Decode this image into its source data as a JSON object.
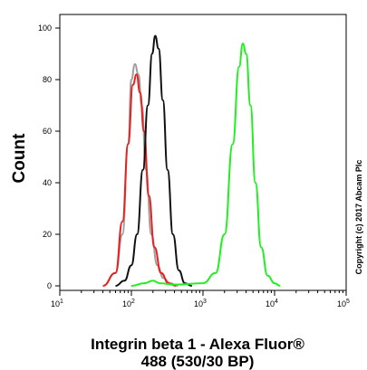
{
  "chart_data": {
    "type": "line",
    "title": "",
    "xlabel_lines": [
      "Integrin beta 1 - Alexa Fluor®",
      "488 (530/30 BP)"
    ],
    "ylabel": "Count",
    "copyright": "Copyright (c) 2017 Abcam Plc",
    "x_scale": "log",
    "xlim": [
      10,
      100000
    ],
    "ylim": [
      0,
      100
    ],
    "grid": false,
    "legend": "none",
    "x_ticks": [
      {
        "value": 10,
        "base": "10",
        "exp": "1"
      },
      {
        "value": 100,
        "base": "10",
        "exp": "2"
      },
      {
        "value": 1000,
        "base": "10",
        "exp": "3"
      },
      {
        "value": 10000,
        "base": "10",
        "exp": "4"
      },
      {
        "value": 100000,
        "base": "10",
        "exp": "5"
      }
    ],
    "y_ticks": [
      "0",
      "20",
      "40",
      "60",
      "80",
      "100"
    ],
    "series": [
      {
        "color": "#9e9e9e",
        "x": [
          40,
          60,
          75,
          90,
          100,
          112,
          125,
          140,
          160,
          190,
          230,
          280,
          350,
          450
        ],
        "y": [
          0,
          5,
          20,
          55,
          80,
          86,
          82,
          70,
          45,
          20,
          8,
          3,
          1,
          0
        ]
      },
      {
        "color": "#e82020",
        "x": [
          40,
          60,
          75,
          90,
          105,
          118,
          132,
          150,
          175,
          210,
          260,
          330,
          420
        ],
        "y": [
          0,
          5,
          25,
          55,
          78,
          82,
          75,
          60,
          35,
          15,
          5,
          1,
          0
        ]
      },
      {
        "color": "#111111",
        "x": [
          60,
          80,
          100,
          120,
          145,
          170,
          195,
          215,
          240,
          275,
          320,
          380,
          460,
          560,
          700
        ],
        "y": [
          0,
          2,
          8,
          20,
          45,
          70,
          90,
          97,
          92,
          72,
          45,
          20,
          6,
          1,
          0
        ]
      },
      {
        "color": "#22ee22",
        "x": [
          100,
          150,
          200,
          250,
          400,
          1000,
          1500,
          2000,
          2600,
          3200,
          3600,
          4000,
          4600,
          5400,
          6500,
          8000,
          10000,
          12000
        ],
        "y": [
          0,
          1,
          2,
          1,
          0.5,
          1,
          5,
          20,
          55,
          85,
          94,
          90,
          70,
          40,
          15,
          4,
          1,
          0
        ]
      }
    ]
  }
}
